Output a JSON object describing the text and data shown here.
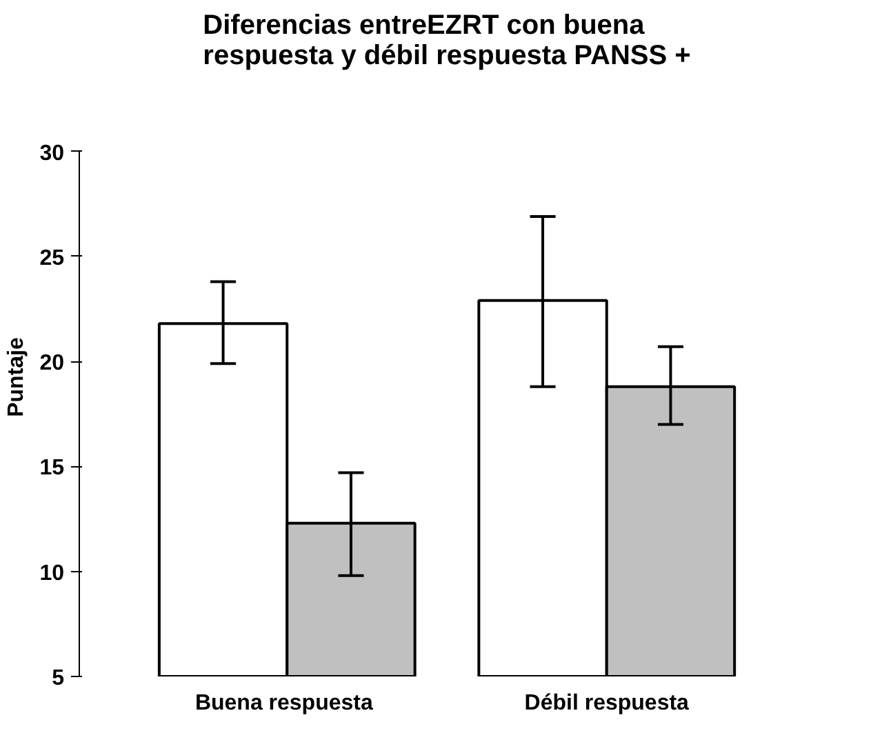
{
  "chart_data": {
    "type": "bar",
    "title": "Diferencias entreEZRT con buena\nrespuesta y débil respuesta PANSS +",
    "ylabel": "Puntaje",
    "categories": [
      "Buena  respuesta",
      "Débil respuesta"
    ],
    "series": [
      {
        "color": "#ffffff",
        "values": [
          21.8,
          22.9
        ],
        "errors": [
          [
            19.9,
            23.8
          ],
          [
            18.8,
            26.9
          ]
        ]
      },
      {
        "color": "#c0c0c0",
        "values": [
          12.3,
          18.8
        ],
        "errors": [
          [
            9.8,
            14.7
          ],
          [
            17.0,
            20.7
          ]
        ]
      }
    ],
    "ylim": [
      5,
      30
    ],
    "yticks": [
      5,
      10,
      15,
      20,
      25,
      30
    ],
    "grid": false
  }
}
